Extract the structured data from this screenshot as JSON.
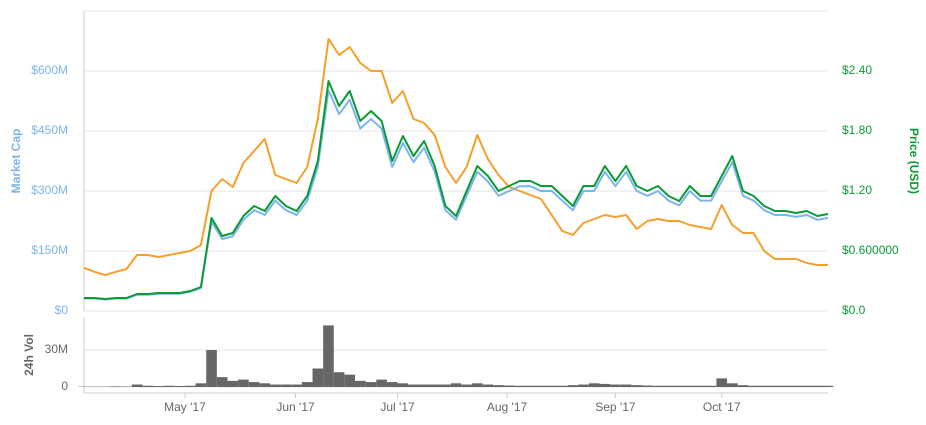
{
  "chart_data": [
    {
      "type": "line",
      "y_label": "Market Cap",
      "y2_label": "Price (USD)",
      "xlim": [
        0,
        70
      ],
      "ylim": [
        0,
        750000000
      ],
      "yticks": [
        {
          "value": 0,
          "label": "$0"
        },
        {
          "value": 150000000,
          "label": "$150M"
        },
        {
          "value": 300000000,
          "label": "$300M"
        },
        {
          "value": 450000000,
          "label": "$450M"
        },
        {
          "value": 600000000,
          "label": "$600M"
        }
      ],
      "y2lim": [
        0,
        3.0
      ],
      "y2ticks": [
        {
          "value": 0,
          "label": "$0.0"
        },
        {
          "value": 0.6,
          "label": "$0.600000"
        },
        {
          "value": 1.2,
          "label": "$1.20"
        },
        {
          "value": 1.8,
          "label": "$1.80"
        },
        {
          "value": 2.4,
          "label": "$2.40"
        }
      ],
      "grid": true,
      "series": [
        {
          "color": "#f4a02a",
          "axis": "y",
          "values": [
            108000000,
            98000000,
            90000000,
            98000000,
            105000000,
            140000000,
            140000000,
            135000000,
            140000000,
            145000000,
            150000000,
            165000000,
            300000000,
            330000000,
            310000000,
            370000000,
            400000000,
            430000000,
            340000000,
            330000000,
            320000000,
            360000000,
            480000000,
            680000000,
            640000000,
            660000000,
            620000000,
            600000000,
            600000000,
            520000000,
            550000000,
            480000000,
            470000000,
            440000000,
            360000000,
            320000000,
            360000000,
            440000000,
            380000000,
            340000000,
            310000000,
            300000000,
            290000000,
            280000000,
            240000000,
            200000000,
            190000000,
            220000000,
            230000000,
            240000000,
            235000000,
            240000000,
            205000000,
            225000000,
            230000000,
            225000000,
            225000000,
            215000000,
            210000000,
            205000000,
            265000000,
            215000000,
            195000000,
            195000000,
            150000000,
            130000000,
            130000000,
            130000000,
            120000000,
            115000000,
            115000000
          ]
        },
        {
          "color": "#7cb5ec",
          "axis": "y",
          "values": [
            31200000,
            31200000,
            28800000,
            31200000,
            31200000,
            40800000,
            40800000,
            43200000,
            43200000,
            43200000,
            48000000,
            57600000,
            223200000,
            180000000,
            187200000,
            228000000,
            252000000,
            240000000,
            276000000,
            252000000,
            240000000,
            276000000,
            360000000,
            552000000,
            492000000,
            528000000,
            456000000,
            480000000,
            456000000,
            360000000,
            420000000,
            372000000,
            408000000,
            348000000,
            252000000,
            228000000,
            288000000,
            348000000,
            324000000,
            288000000,
            300000000,
            312000000,
            312000000,
            300000000,
            300000000,
            276000000,
            252000000,
            300000000,
            300000000,
            348000000,
            312000000,
            348000000,
            300000000,
            288000000,
            300000000,
            276000000,
            264000000,
            300000000,
            276000000,
            276000000,
            324000000,
            372000000,
            288000000,
            276000000,
            252000000,
            240000000,
            240000000,
            235200000,
            240000000,
            228000000,
            232800000
          ]
        },
        {
          "color": "#0b9a36",
          "axis": "y2",
          "values": [
            0.13,
            0.13,
            0.12,
            0.13,
            0.13,
            0.17,
            0.17,
            0.18,
            0.18,
            0.18,
            0.2,
            0.24,
            0.93,
            0.75,
            0.78,
            0.95,
            1.05,
            1.0,
            1.15,
            1.05,
            1.0,
            1.15,
            1.5,
            2.3,
            2.05,
            2.2,
            1.9,
            2.0,
            1.9,
            1.5,
            1.75,
            1.55,
            1.7,
            1.45,
            1.05,
            0.95,
            1.2,
            1.45,
            1.35,
            1.2,
            1.25,
            1.3,
            1.3,
            1.25,
            1.25,
            1.15,
            1.05,
            1.25,
            1.25,
            1.45,
            1.3,
            1.45,
            1.25,
            1.2,
            1.25,
            1.15,
            1.1,
            1.25,
            1.15,
            1.15,
            1.35,
            1.55,
            1.2,
            1.15,
            1.05,
            1.0,
            1.0,
            0.98,
            1.0,
            0.95,
            0.97
          ]
        }
      ]
    },
    {
      "type": "bar",
      "y_label": "24h Vol",
      "xlim": [
        0,
        70
      ],
      "xticks": [
        {
          "value": 9.5,
          "label": "May '17"
        },
        {
          "value": 19.9,
          "label": "Jun '17"
        },
        {
          "value": 29.5,
          "label": "Jul '17"
        },
        {
          "value": 39.8,
          "label": "Aug '17"
        },
        {
          "value": 50.0,
          "label": "Sep '17"
        },
        {
          "value": 60.0,
          "label": "Oct '17"
        }
      ],
      "ylim": [
        0,
        56000000
      ],
      "yticks": [
        0,
        {
          "value": 30000000,
          "label": "30M"
        }
      ],
      "grid": true,
      "color": "#666666",
      "values": [
        300000,
        300000,
        300000,
        500000,
        400000,
        2000000,
        1000000,
        800000,
        1000000,
        800000,
        1000000,
        3000000,
        30000000,
        8000000,
        5000000,
        6000000,
        4000000,
        3000000,
        2000000,
        2000000,
        2000000,
        4000000,
        15000000,
        50000000,
        12000000,
        10000000,
        5000000,
        4000000,
        6000000,
        4000000,
        3000000,
        2000000,
        2000000,
        2000000,
        2000000,
        3000000,
        2000000,
        3000000,
        2000000,
        1500000,
        1200000,
        1000000,
        1000000,
        1000000,
        1000000,
        1000000,
        1500000,
        2000000,
        3000000,
        2500000,
        2000000,
        2000000,
        1500000,
        1200000,
        1000000,
        1000000,
        1000000,
        1000000,
        1000000,
        1000000,
        7000000,
        3000000,
        1500000,
        1000000,
        1000000,
        1000000,
        1000000,
        1000000,
        1000000,
        1000000,
        1000000
      ]
    }
  ]
}
